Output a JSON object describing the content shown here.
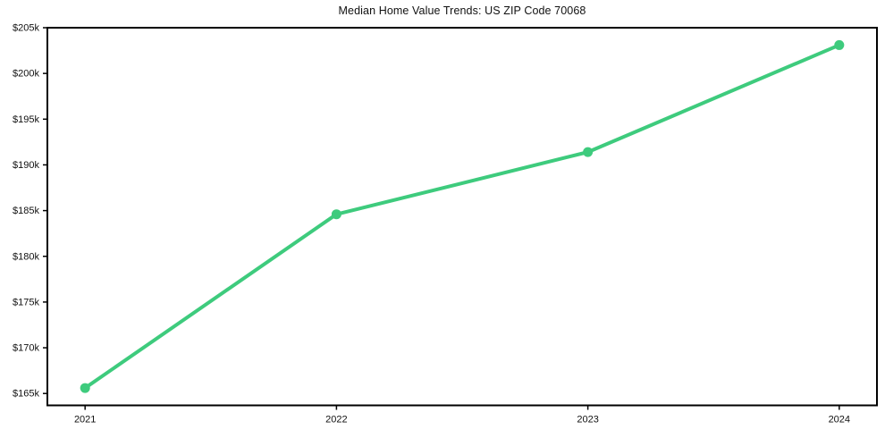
{
  "chart_data": {
    "type": "line",
    "title": "Median Home Value Trends: US ZIP Code 70068",
    "x": [
      2021,
      2022,
      2023,
      2024
    ],
    "x_tick_labels": [
      "2021",
      "2022",
      "2023",
      "2024"
    ],
    "series": [
      {
        "name": "Median Home Value",
        "values": [
          165600,
          184600,
          191400,
          203100
        ],
        "color": "#3ecb7d",
        "marker": "circle"
      }
    ],
    "y_ticks": [
      165000,
      170000,
      175000,
      180000,
      185000,
      190000,
      195000,
      200000,
      205000
    ],
    "y_tick_labels": [
      "$165k",
      "$170k",
      "$175k",
      "$180k",
      "$185k",
      "$190k",
      "$195k",
      "$200k",
      "$205k"
    ],
    "xlim": [
      2020.85,
      2024.15
    ],
    "ylim": [
      163700,
      205000
    ],
    "xlabel": "",
    "ylabel": "",
    "grid": false,
    "legend": "none",
    "axis_color": "#000000",
    "text_color": "#111111",
    "background": "#ffffff"
  }
}
